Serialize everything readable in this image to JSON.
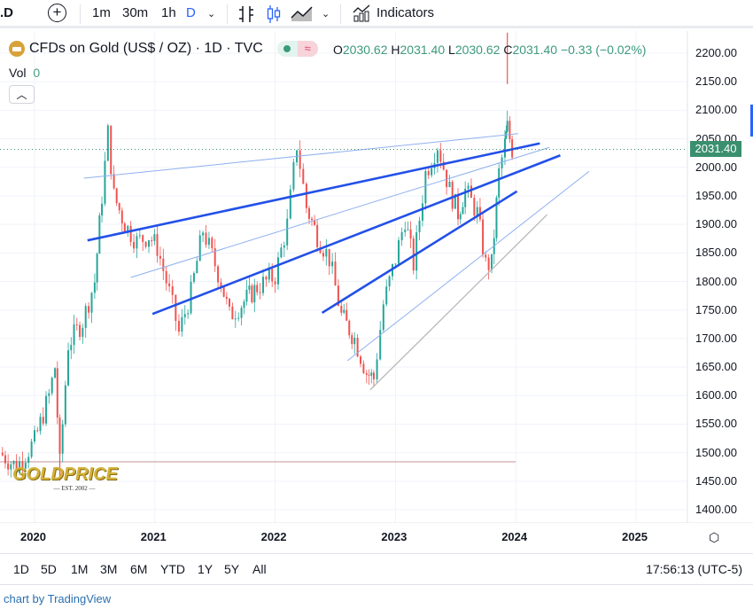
{
  "toolbar": {
    "symbol_partial": ".D",
    "intervals": [
      "1m",
      "30m",
      "1h",
      "D"
    ],
    "indicators_label": "Indicators"
  },
  "legend": {
    "title": "CFDs on Gold (US$ / OZ) · 1D · TVC",
    "vol_label": "Vol",
    "vol_value": "0",
    "open_label": "O",
    "open": "2030.62",
    "high_label": "H",
    "high": "2031.40",
    "low_label": "L",
    "low": "2030.62",
    "close_label": "C",
    "close": "2031.40",
    "change": "−0.33 (−0.02%)"
  },
  "current_price": "2031.40",
  "colors": {
    "up": "#26a69a",
    "down": "#ef5350",
    "accent": "#2962ff",
    "price_tag": "#3a8f6e"
  },
  "range_buttons": [
    "1D",
    "5D",
    "1M",
    "3M",
    "6M",
    "YTD",
    "1Y",
    "5Y",
    "All"
  ],
  "clock": "17:56:13 (UTC-5)",
  "footer": "chart by TradingView",
  "watermark": {
    "brand": "GOLDPRICE",
    "sub": "EST. 2002"
  },
  "chart_data": {
    "type": "candlestick",
    "title": "CFDs on Gold (US$ / OZ) · 1D · TVC",
    "x_ticks": [
      "2020",
      "2021",
      "2022",
      "2023",
      "2024",
      "2025"
    ],
    "y_ticks": [
      "2200.00",
      "2150.00",
      "2100.00",
      "2050.00",
      "2000.00",
      "1950.00",
      "1900.00",
      "1850.00",
      "1800.00",
      "1750.00",
      "1700.00",
      "1650.00",
      "1600.00",
      "1550.00",
      "1500.00",
      "1450.00",
      "1400.00"
    ],
    "ylim": [
      1400,
      2200
    ],
    "xlim": [
      2019.71,
      2025.42
    ],
    "price_path": [
      [
        2019.71,
        1500
      ],
      [
        2019.85,
        1475
      ],
      [
        2020.0,
        1520
      ],
      [
        2020.12,
        1600
      ],
      [
        2020.17,
        1650
      ],
      [
        2020.21,
        1480
      ],
      [
        2020.28,
        1690
      ],
      [
        2020.4,
        1730
      ],
      [
        2020.5,
        1800
      ],
      [
        2020.56,
        1950
      ],
      [
        2020.61,
        2060
      ],
      [
        2020.66,
        1950
      ],
      [
        2020.75,
        1900
      ],
      [
        2020.85,
        1870
      ],
      [
        2020.95,
        1880
      ],
      [
        2021.02,
        1860
      ],
      [
        2021.12,
        1780
      ],
      [
        2021.2,
        1710
      ],
      [
        2021.3,
        1780
      ],
      [
        2021.4,
        1890
      ],
      [
        2021.45,
        1860
      ],
      [
        2021.55,
        1800
      ],
      [
        2021.62,
        1740
      ],
      [
        2021.72,
        1760
      ],
      [
        2021.85,
        1790
      ],
      [
        2022.0,
        1810
      ],
      [
        2022.1,
        1900
      ],
      [
        2022.18,
        2040
      ],
      [
        2022.26,
        1930
      ],
      [
        2022.35,
        1880
      ],
      [
        2022.45,
        1840
      ],
      [
        2022.55,
        1740
      ],
      [
        2022.66,
        1700
      ],
      [
        2022.76,
        1640
      ],
      [
        2022.82,
        1630
      ],
      [
        2022.9,
        1760
      ],
      [
        2023.0,
        1840
      ],
      [
        2023.08,
        1910
      ],
      [
        2023.15,
        1830
      ],
      [
        2023.25,
        1990
      ],
      [
        2023.35,
        2040
      ],
      [
        2023.45,
        1960
      ],
      [
        2023.52,
        1920
      ],
      [
        2023.58,
        1960
      ],
      [
        2023.68,
        1920
      ],
      [
        2023.75,
        1830
      ],
      [
        2023.8,
        1830
      ],
      [
        2023.86,
        1990
      ],
      [
        2023.91,
        2040
      ],
      [
        2023.93,
        2070
      ],
      [
        2023.97,
        2031.4
      ]
    ],
    "spikes": [
      [
        2020.21,
        1451
      ],
      [
        2023.93,
        2146
      ]
    ],
    "trendlines": [
      {
        "from": [
          2020.41,
          1981
        ],
        "to": [
          2024.02,
          2059
        ],
        "style": "thin"
      },
      {
        "from": [
          2020.44,
          1872
        ],
        "to": [
          2024.2,
          2042
        ],
        "style": "thick"
      },
      {
        "from": [
          2020.8,
          1807
        ],
        "to": [
          2024.28,
          2035
        ],
        "style": "thin"
      },
      {
        "from": [
          2020.98,
          1743
        ],
        "to": [
          2024.37,
          2021
        ],
        "style": "thick"
      },
      {
        "from": [
          2022.39,
          1745
        ],
        "to": [
          2024.01,
          1958
        ],
        "style": "thick"
      },
      {
        "from": [
          2022.6,
          1661
        ],
        "to": [
          2024.61,
          1993
        ],
        "style": "thin"
      },
      {
        "from": [
          2022.79,
          1610
        ],
        "to": [
          2024.26,
          1917
        ],
        "style": "gray"
      }
    ],
    "horizontal_line": {
      "price": 1484,
      "to": 2024.0
    },
    "last_price": 2031.4
  }
}
